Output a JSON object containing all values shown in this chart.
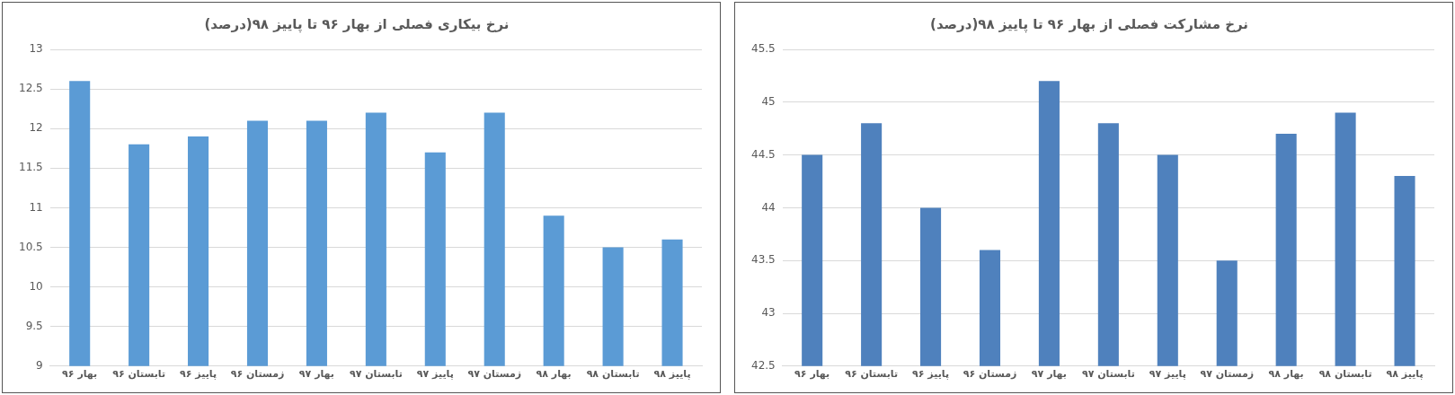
{
  "chart_data": [
    {
      "type": "bar",
      "title": "نرخ بیکاری فصلی از بهار ۹۶ تا پاییز ۹۸(درصد)",
      "categories": [
        "بهار ۹۶",
        "تابستان ۹۶",
        "پاییز ۹۶",
        "زمستان ۹۶",
        "بهار ۹۷",
        "تابستان ۹۷",
        "پاییز ۹۷",
        "زمستان ۹۷",
        "بهار ۹۸",
        "تابستان ۹۸",
        "پاییز ۹۸"
      ],
      "values": [
        12.6,
        11.8,
        11.9,
        12.1,
        12.1,
        12.2,
        11.7,
        12.2,
        10.9,
        10.5,
        10.6
      ],
      "color": "#5b9bd5",
      "ylim": [
        9,
        13
      ],
      "yticks": [
        9,
        9.5,
        10,
        10.5,
        11,
        11.5,
        12,
        12.5,
        13
      ],
      "grid": "y",
      "legend": false
    },
    {
      "type": "bar",
      "title": "نرخ مشارکت فصلی از بهار ۹۶ تا پاییز ۹۸(درصد)",
      "categories": [
        "بهار ۹۶",
        "تابستان ۹۶",
        "پاییز ۹۶",
        "زمستان ۹۶",
        "بهار ۹۷",
        "تابستان ۹۷",
        "پاییز ۹۷",
        "زمستان ۹۷",
        "بهار ۹۸",
        "تابستان ۹۸",
        "پاییز ۹۸"
      ],
      "values": [
        44.5,
        44.8,
        44.0,
        43.6,
        45.2,
        44.8,
        44.5,
        43.5,
        44.7,
        44.9,
        44.3
      ],
      "color": "#4f81bd",
      "ylim": [
        42.5,
        45.5
      ],
      "yticks": [
        42.5,
        43,
        43.5,
        44,
        44.5,
        45,
        45.5
      ],
      "grid": "y",
      "legend": false
    }
  ]
}
